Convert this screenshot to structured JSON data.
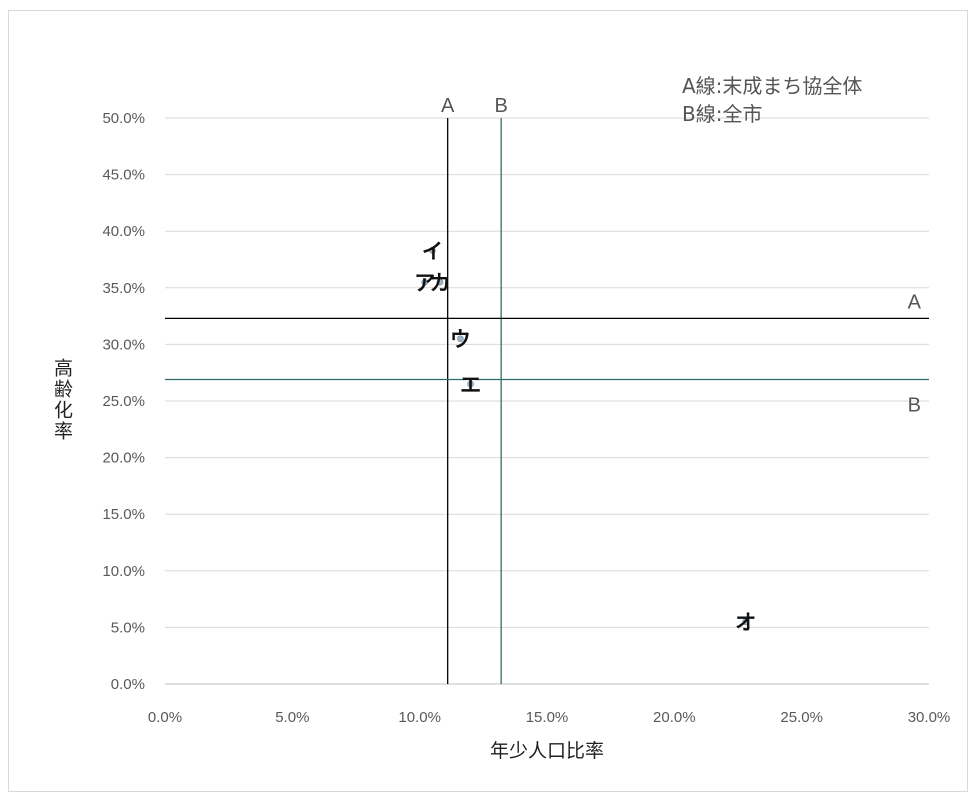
{
  "chart_data": {
    "type": "scatter",
    "title": "",
    "xlabel": "年少人口比率",
    "ylabel": "高齢化率",
    "xlim": [
      0,
      30
    ],
    "ylim": [
      0,
      50
    ],
    "x_ticks": [
      "0.0%",
      "5.0%",
      "10.0%",
      "15.0%",
      "20.0%",
      "25.0%",
      "30.0%"
    ],
    "y_ticks": [
      "0.0%",
      "5.0%",
      "10.0%",
      "15.0%",
      "20.0%",
      "25.0%",
      "30.0%",
      "35.0%",
      "40.0%",
      "45.0%",
      "50.0%"
    ],
    "grid": "horizontal",
    "points": [
      {
        "label": "イ",
        "x": 10.5,
        "y": 38.3
      },
      {
        "label": "ア",
        "x": 10.2,
        "y": 35.5
      },
      {
        "label": "カ",
        "x": 10.8,
        "y": 35.5
      },
      {
        "label": "ウ",
        "x": 11.6,
        "y": 30.5
      },
      {
        "label": "エ",
        "x": 12.0,
        "y": 26.5
      },
      {
        "label": "オ",
        "x": 22.8,
        "y": 5.5
      }
    ],
    "reference_lines": [
      {
        "name": "A",
        "axis": "x",
        "value": 11.1,
        "color": "#000000"
      },
      {
        "name": "B",
        "axis": "x",
        "value": 13.2,
        "color": "#2e6e6a"
      },
      {
        "name": "A",
        "axis": "y",
        "value": 32.3,
        "color": "#000000"
      },
      {
        "name": "B",
        "axis": "y",
        "value": 26.9,
        "color": "#2e6e6a"
      }
    ],
    "legend": {
      "position": "top-right",
      "lines": [
        "A線:末成まち協全体",
        "B線:全市"
      ]
    }
  }
}
